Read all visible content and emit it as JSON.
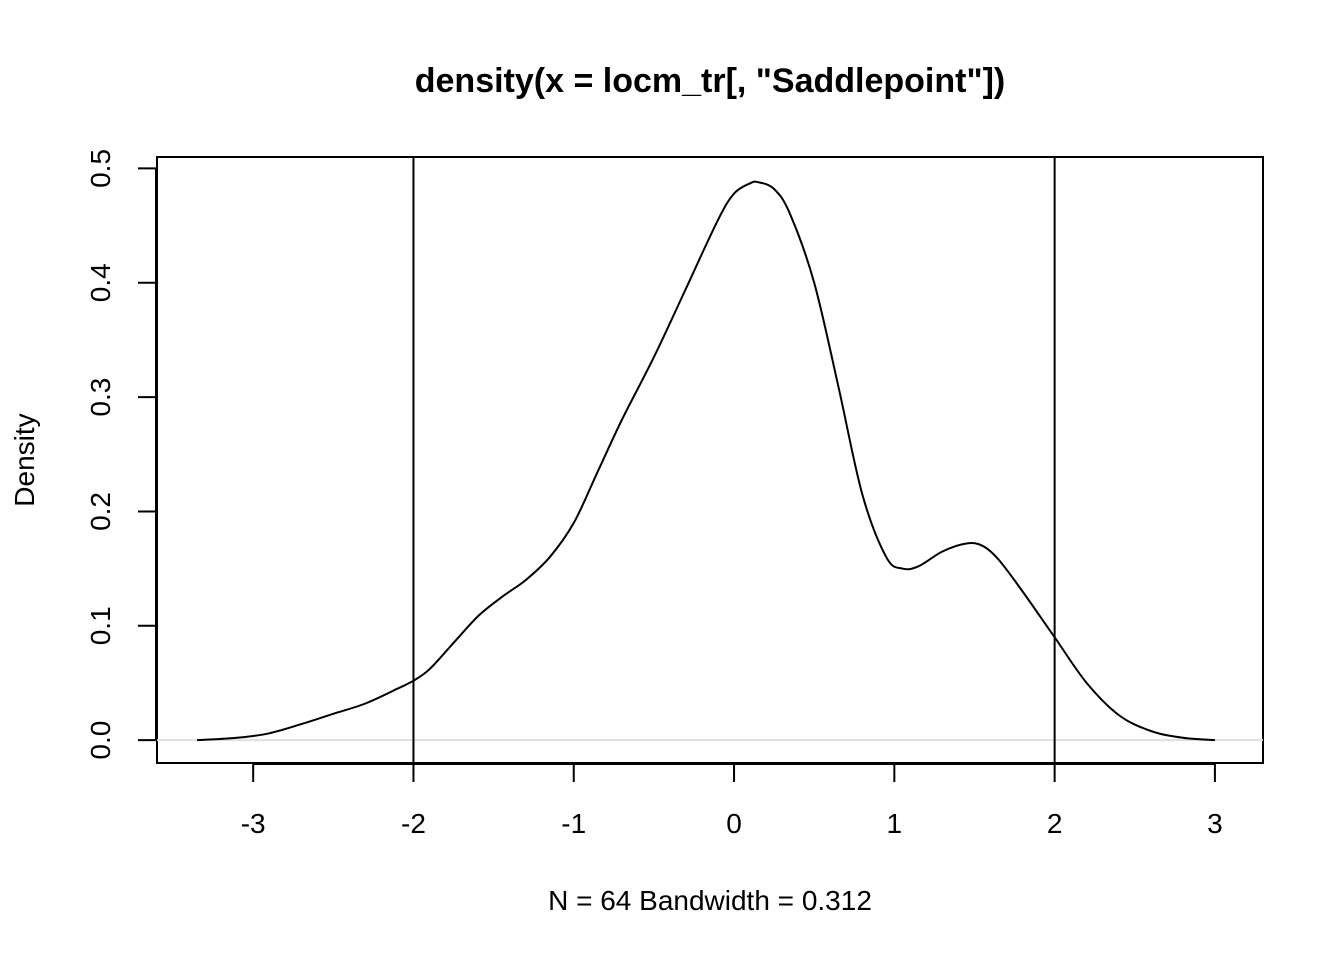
{
  "chart_data": {
    "type": "line",
    "title": "density(x = locm_tr[, \"Saddlepoint\"])",
    "xlabel": "N = 64   Bandwidth = 0.312",
    "ylabel": "Density",
    "xlim": [
      -3.6,
      3.3
    ],
    "ylim": [
      -0.02,
      0.51
    ],
    "x_ticks": [
      "-3",
      "-2",
      "-1",
      "0",
      "1",
      "2",
      "3"
    ],
    "y_ticks": [
      "0.0",
      "0.1",
      "0.2",
      "0.3",
      "0.4",
      "0.5"
    ],
    "zero_line": 0,
    "vertical_lines": [
      -2,
      2
    ],
    "grid": false,
    "series": [
      {
        "x": [
          -3.35,
          -3.1,
          -2.9,
          -2.7,
          -2.5,
          -2.3,
          -2.1,
          -2.0,
          -1.9,
          -1.75,
          -1.6,
          -1.45,
          -1.3,
          -1.15,
          -1.0,
          -0.85,
          -0.7,
          -0.5,
          -0.3,
          -0.1,
          0.0,
          0.1,
          0.15,
          0.25,
          0.35,
          0.5,
          0.65,
          0.8,
          0.95,
          1.05,
          1.15,
          1.3,
          1.45,
          1.55,
          1.65,
          1.8,
          2.0,
          2.2,
          2.4,
          2.6,
          2.8,
          3.0
        ],
        "y": [
          0.0,
          0.002,
          0.006,
          0.014,
          0.023,
          0.032,
          0.045,
          0.052,
          0.062,
          0.085,
          0.108,
          0.125,
          0.14,
          0.16,
          0.19,
          0.235,
          0.28,
          0.335,
          0.395,
          0.455,
          0.478,
          0.487,
          0.488,
          0.482,
          0.46,
          0.4,
          0.31,
          0.215,
          0.16,
          0.15,
          0.152,
          0.165,
          0.172,
          0.17,
          0.158,
          0.13,
          0.09,
          0.05,
          0.022,
          0.008,
          0.002,
          0.0
        ]
      }
    ]
  }
}
